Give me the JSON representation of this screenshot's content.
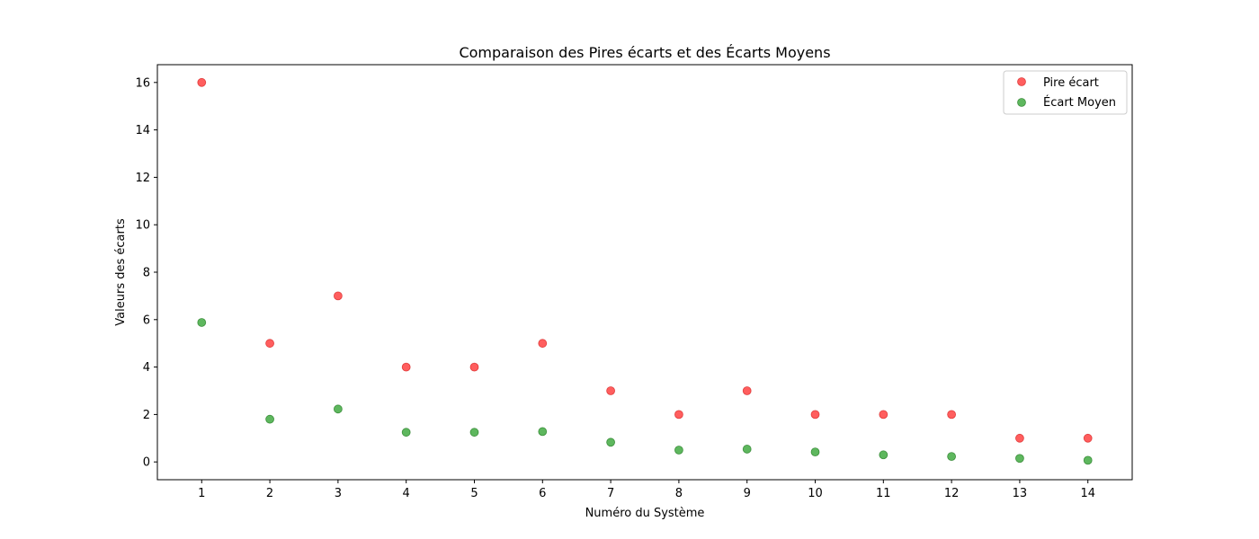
{
  "chart_data": {
    "type": "scatter",
    "title": "Comparaison des Pires écarts et des Écarts Moyens",
    "xlabel": "Numéro du Système",
    "ylabel": "Valeurs des écarts",
    "x": [
      1,
      2,
      3,
      4,
      5,
      6,
      7,
      8,
      9,
      10,
      11,
      12,
      13,
      14
    ],
    "x_tick_labels": [
      "1",
      "2",
      "3",
      "4",
      "5",
      "6",
      "7",
      "8",
      "9",
      "10",
      "11",
      "12",
      "13",
      "14"
    ],
    "y_ticks": [
      0,
      2,
      4,
      6,
      8,
      10,
      12,
      14,
      16
    ],
    "y_tick_labels": [
      "0",
      "2",
      "4",
      "6",
      "8",
      "10",
      "12",
      "14",
      "16"
    ],
    "xlim": [
      0.35,
      14.65
    ],
    "ylim": [
      -0.75,
      16.75
    ],
    "grid": false,
    "legend_position": "top-right",
    "series": [
      {
        "name": "Pire écart",
        "color": "#ff4d4d",
        "edge_color": "#cc0000",
        "values": [
          16,
          5,
          7,
          4,
          4,
          5,
          3,
          2,
          3,
          2,
          2,
          2,
          1,
          1
        ]
      },
      {
        "name": "Écart Moyen",
        "color": "#4caf4c",
        "edge_color": "#006400",
        "values": [
          5.88,
          1.8,
          2.23,
          1.25,
          1.25,
          1.28,
          0.83,
          0.5,
          0.54,
          0.42,
          0.3,
          0.23,
          0.15,
          0.07
        ]
      }
    ]
  }
}
